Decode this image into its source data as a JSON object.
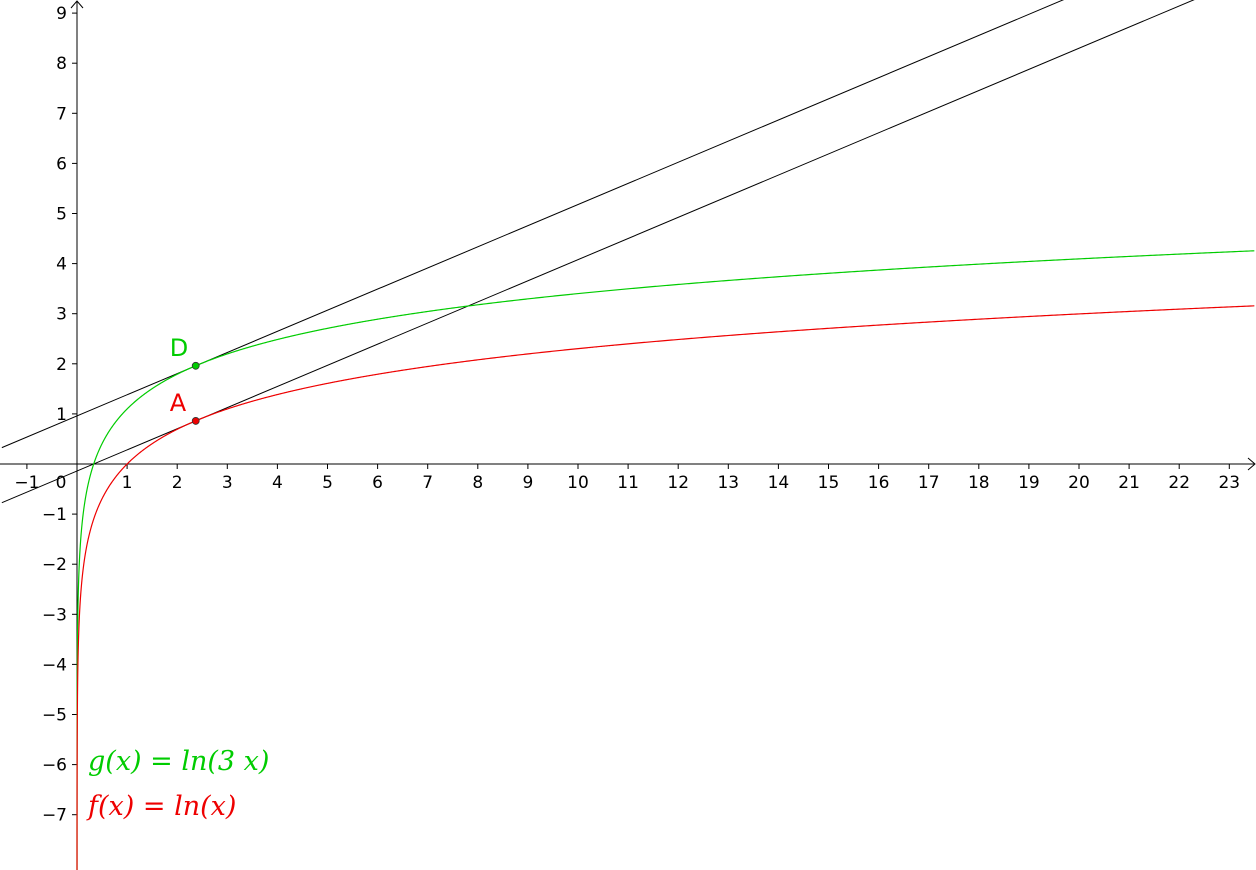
{
  "colors": {
    "g": "#00cc00",
    "f": "#ee0000",
    "tangent": "#000000",
    "axis": "#000000",
    "background": "#ffffff"
  },
  "formulas": {
    "g": "g(x)  =  ln(3 x)",
    "f": "f(x)  =  ln(x)"
  },
  "chart_data": {
    "type": "line",
    "title": "",
    "xlabel": "",
    "ylabel": "",
    "xlim": [
      -1.5,
      23.5
    ],
    "ylim": [
      -8,
      9.3
    ],
    "grid": false,
    "x_ticks": [
      -1,
      0,
      1,
      2,
      3,
      4,
      5,
      6,
      7,
      8,
      9,
      10,
      11,
      12,
      13,
      14,
      15,
      16,
      17,
      18,
      19,
      20,
      21,
      22,
      23
    ],
    "x_tick_labels": [
      "−1",
      "0",
      "1",
      "2",
      "3",
      "4",
      "5",
      "6",
      "7",
      "8",
      "9",
      "10",
      "11",
      "12",
      "13",
      "14",
      "15",
      "16",
      "17",
      "18",
      "19",
      "20",
      "21",
      "22",
      "23"
    ],
    "y_ticks": [
      -7,
      -6,
      -5,
      -4,
      -3,
      -2,
      -1,
      1,
      2,
      3,
      4,
      5,
      6,
      7,
      8,
      9
    ],
    "y_tick_labels": [
      "−7",
      "−6",
      "−5",
      "−4",
      "−3",
      "−2",
      "−1",
      "1",
      "2",
      "3",
      "4",
      "5",
      "6",
      "7",
      "8",
      "9"
    ],
    "functions": [
      {
        "name": "g(x) = ln(3 x)",
        "key": "g",
        "expr": "ln(3x)",
        "k": 3
      },
      {
        "name": "f(x) = ln(x)",
        "key": "f",
        "expr": "ln(x)",
        "k": 1
      }
    ],
    "points": [
      {
        "label": "D",
        "x": 2.37,
        "y": 1.96,
        "curve": "g"
      },
      {
        "label": "A",
        "x": 2.37,
        "y": 0.86,
        "curve": "f"
      }
    ],
    "tangent_lines": [
      {
        "through": "D",
        "slope": 0.4219,
        "intercept": 0.96
      },
      {
        "through": "A",
        "slope": 0.4219,
        "intercept": -0.14
      }
    ]
  }
}
